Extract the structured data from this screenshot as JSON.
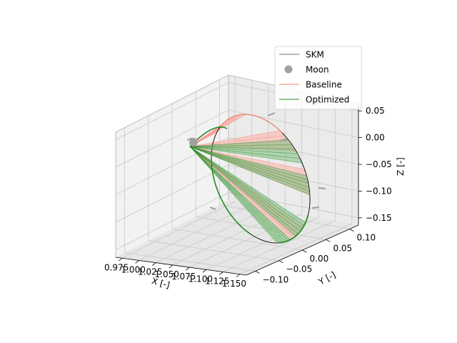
{
  "chart_data": {
    "type": "3d-line",
    "title": "",
    "xlabel": "X [-]",
    "ylabel": "Y [-]",
    "zlabel": "Z [-]",
    "x_ticks": [
      "0.975",
      "1.000",
      "1.025",
      "1.050",
      "1.075",
      "1.100",
      "1.125",
      "1.150"
    ],
    "y_ticks": [
      "−0.10",
      "−0.05",
      "0.00",
      "0.05",
      "0.10"
    ],
    "z_ticks": [
      "−0.15",
      "−0.10",
      "−0.05",
      "0.00",
      "0.05"
    ],
    "legend_position": "top-right",
    "grid": true,
    "series": [
      {
        "name": "SKM",
        "color": "#a0a0a0",
        "marker": "line"
      },
      {
        "name": "Moon",
        "color": "#a0a0a0",
        "marker": "circle"
      },
      {
        "name": "Baseline",
        "color": "#fa8072",
        "marker": "line"
      },
      {
        "name": "Optimized",
        "color": "#228b22",
        "marker": "line"
      }
    ],
    "colors": {
      "reference_orbit": "#000000",
      "baseline_fill": "#fbb4ab",
      "optimized_fill": "#7fbf7f"
    }
  }
}
